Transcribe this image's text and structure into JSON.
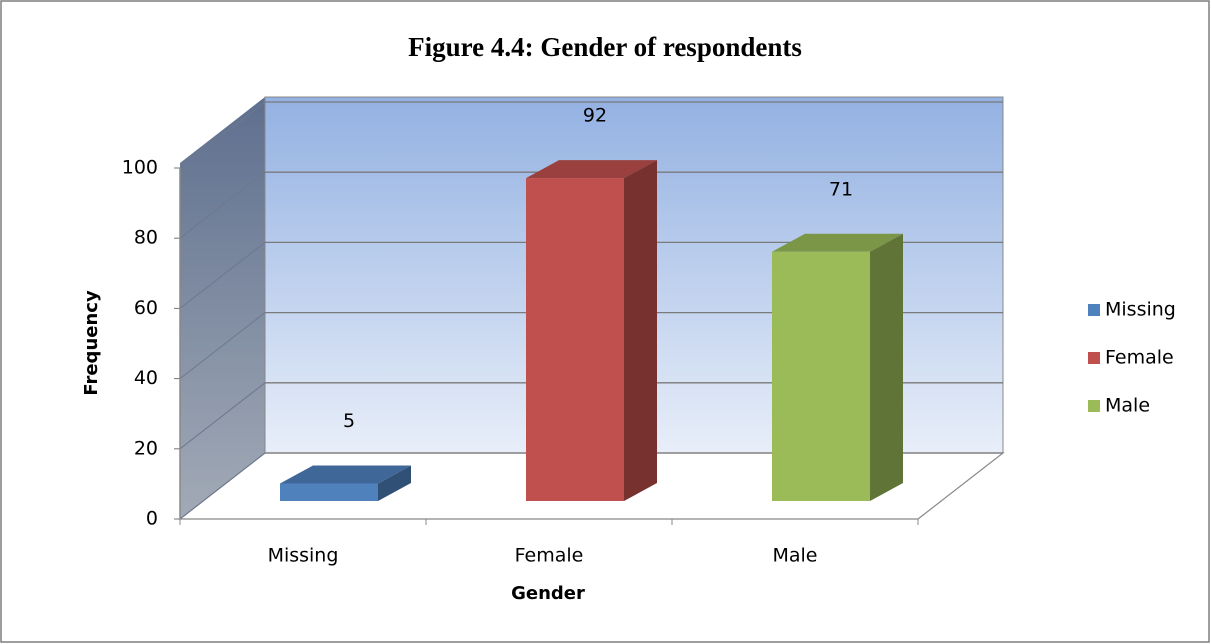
{
  "chart_data": {
    "type": "bar3d",
    "title": "Figure 4.4: Gender of respondents",
    "xlabel": "Gender",
    "ylabel": "Frequency",
    "categories": [
      "Missing",
      "Female",
      "Male"
    ],
    "series": [
      {
        "name": "Missing",
        "color": "#4f81bd",
        "values": [
          5,
          null,
          null
        ]
      },
      {
        "name": "Female",
        "color": "#c0504d",
        "values": [
          null,
          92,
          null
        ]
      },
      {
        "name": "Male",
        "color": "#9bbb59",
        "values": [
          null,
          null,
          71
        ]
      }
    ],
    "ylim": [
      0,
      100
    ],
    "yticks": [
      0,
      20,
      40,
      60,
      80,
      100
    ],
    "grid": true,
    "legend": "right"
  }
}
